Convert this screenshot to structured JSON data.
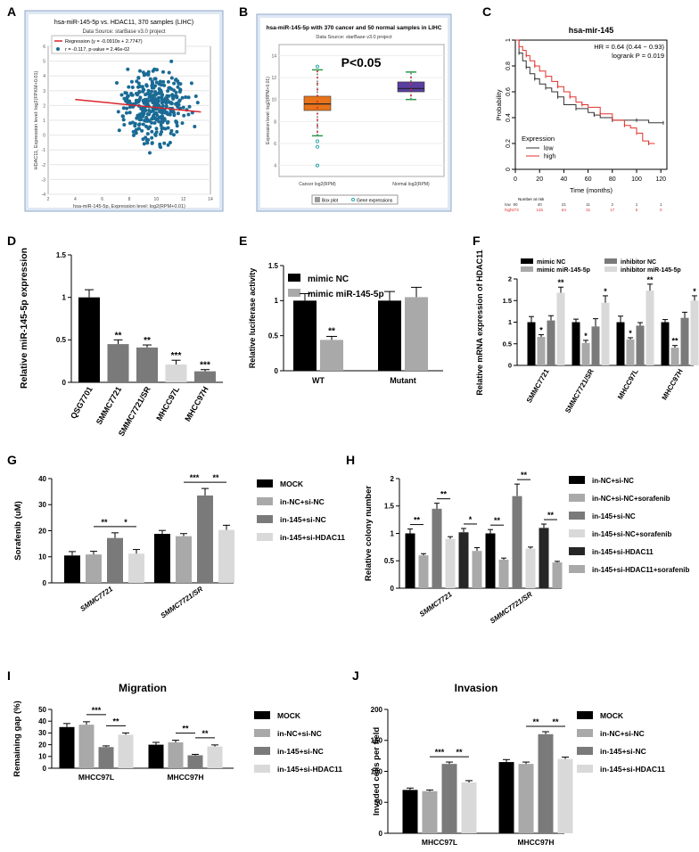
{
  "colors": {
    "black": "#000000",
    "dark": "#262626",
    "mid": "#7a7a7a",
    "light": "#a9a9a9",
    "pale": "#d9d9d9",
    "scatter": "#1a6b95",
    "regression": "#d9262e",
    "box_cancer": "#e8731a",
    "box_normal": "#5a3ea0",
    "km_low": "#333333",
    "km_high": "#e0312c",
    "panel_bg": "#dfe8f4"
  },
  "panels": {
    "A": {
      "label": "A"
    },
    "B": {
      "label": "B"
    },
    "C": {
      "label": "C"
    },
    "D": {
      "label": "D"
    },
    "E": {
      "label": "E"
    },
    "F": {
      "label": "F"
    },
    "G": {
      "label": "G"
    },
    "H": {
      "label": "H"
    },
    "I": {
      "label": "I"
    },
    "J": {
      "label": "J"
    }
  },
  "chart_data": [
    {
      "id": "A",
      "type": "scatter",
      "title": "hsa-miR-145-5p vs. HDAC11, 370 samples (LIHC)",
      "subtitle": "Data Source: starBase v3.0 project",
      "legend": [
        "Regression (y = -0.0910x + 2.7747)",
        "r = -0.117, p-value = 2.46e-02"
      ],
      "xlabel": "hsa-miR-145-5p, Expression level: log2(RPM+0.01)",
      "ylabel": "HDAC11, Expression level: log2(FPKM+0.01)",
      "xticks": [
        2,
        4,
        6,
        8,
        10,
        12,
        14
      ],
      "yticks": [
        -4,
        -3,
        -2,
        -1,
        0,
        1,
        2,
        3,
        4,
        5,
        6
      ],
      "xlim": [
        2,
        14
      ],
      "ylim": [
        -4,
        6
      ],
      "regression": {
        "slope": -0.091,
        "intercept": 2.7747
      },
      "n_points": 370,
      "x_center": 9.9,
      "x_spread": 1.2,
      "y_center": 1.9,
      "y_spread": 1.2
    },
    {
      "id": "B",
      "type": "box",
      "title": "hsa-miR-145-5p with 370 cancer and 50 normal samples in LIHC",
      "subtitle": "Data Source: starBase v3.0 project",
      "annotation": "P<0.05",
      "ylabel": "Expression level: log2(RPM+0.01)",
      "yticks": [
        4,
        6,
        8,
        10,
        12,
        14
      ],
      "ylim": [
        3,
        15
      ],
      "categories": [
        "Cancer log2(RPM)",
        "Normal log2(RPM)"
      ],
      "boxes": [
        {
          "name": "Cancer log2(RPM)",
          "q1": 9.0,
          "median": 9.6,
          "q3": 10.3,
          "whisker_low": 6.7,
          "whisker_high": 12.7,
          "outliers": [
            4.0,
            5.7,
            6.2,
            13.0
          ]
        },
        {
          "name": "Normal log2(RPM)",
          "q1": 10.7,
          "median": 11.0,
          "q3": 11.6,
          "whisker_low": 10.0,
          "whisker_high": 12.5,
          "outliers": []
        }
      ],
      "legend": [
        "Box plot",
        "Gene expressions"
      ]
    },
    {
      "id": "C",
      "type": "line",
      "title": "hsa-mir-145",
      "stats": [
        "HR = 0.64 (0.44 − 0.93)",
        "logrank P = 0.019"
      ],
      "xlabel": "Time (months)",
      "ylabel": "Probability",
      "xticks": [
        0,
        20,
        40,
        60,
        80,
        100,
        120
      ],
      "yticks": [
        0.0,
        0.2,
        0.4,
        0.6,
        0.8,
        1.0
      ],
      "xlim": [
        0,
        125
      ],
      "ylim": [
        0,
        1
      ],
      "legend_title": "Expression",
      "series": [
        {
          "name": "low",
          "x": [
            0,
            3,
            6,
            9,
            12,
            16,
            20,
            25,
            30,
            35,
            40,
            50,
            60,
            65,
            70,
            80,
            90,
            100,
            110,
            122
          ],
          "y": [
            1.0,
            0.9,
            0.84,
            0.79,
            0.74,
            0.7,
            0.66,
            0.63,
            0.6,
            0.56,
            0.5,
            0.47,
            0.44,
            0.42,
            0.4,
            0.38,
            0.38,
            0.38,
            0.36,
            0.36
          ]
        },
        {
          "name": "high",
          "x": [
            0,
            3,
            6,
            9,
            12,
            16,
            20,
            25,
            30,
            35,
            40,
            45,
            50,
            55,
            60,
            70,
            80,
            90,
            95,
            100,
            105,
            110,
            115
          ],
          "y": [
            1.0,
            0.95,
            0.92,
            0.88,
            0.84,
            0.8,
            0.76,
            0.72,
            0.68,
            0.64,
            0.6,
            0.56,
            0.52,
            0.5,
            0.48,
            0.43,
            0.38,
            0.34,
            0.32,
            0.28,
            0.22,
            0.2,
            0.2
          ]
        }
      ],
      "risk_table": {
        "title": "Number at risk",
        "rows": [
          {
            "name": "low",
            "values": [
              90,
              40,
              21,
              11,
              2,
              1,
              1
            ]
          },
          {
            "name": "high",
            "values": [
              273,
              145,
              64,
              31,
              17,
              5,
              0
            ]
          }
        ]
      }
    },
    {
      "id": "D",
      "type": "bar",
      "ylabel": "Relative miR-145-5p expression",
      "yticks": [
        0.0,
        0.5,
        1.0,
        1.5
      ],
      "ylim": [
        0,
        1.5
      ],
      "categories": [
        "QSG7701",
        "SMMC7721",
        "SMMC7721/SR",
        "MHCC97L",
        "MHCC97H"
      ],
      "values": [
        1.0,
        0.45,
        0.41,
        0.21,
        0.13
      ],
      "errors": [
        0.09,
        0.05,
        0.03,
        0.05,
        0.02
      ],
      "sig": [
        "",
        "**",
        "**",
        "***",
        "***"
      ]
    },
    {
      "id": "E",
      "type": "bar",
      "ylabel": "Relative luciferase activity",
      "yticks": [
        0.0,
        0.5,
        1.0,
        1.5
      ],
      "ylim": [
        0,
        1.5
      ],
      "categories": [
        "WT",
        "Mutant"
      ],
      "series": [
        {
          "name": "mimic NC",
          "values": [
            1.0,
            1.0
          ],
          "errors": [
            0.1,
            0.13
          ]
        },
        {
          "name": "mimic miR-145-5p",
          "values": [
            0.44,
            1.05
          ],
          "errors": [
            0.05,
            0.14
          ]
        }
      ],
      "sig": [
        {
          "category": "WT",
          "series": 1,
          "text": "**"
        }
      ]
    },
    {
      "id": "F",
      "type": "bar",
      "ylabel": "Relative mRNA expression of HDAC11",
      "yticks": [
        0.0,
        0.5,
        1.0,
        1.5,
        2.0
      ],
      "ylim": [
        0,
        2.0
      ],
      "categories": [
        "SMMC7721",
        "SMMC7721/SR",
        "MHCC97L",
        "MHCC97H"
      ],
      "series": [
        {
          "name": "mimic NC",
          "values": [
            1.0,
            1.0,
            1.0,
            1.0
          ],
          "errors": [
            0.13,
            0.07,
            0.14,
            0.06
          ]
        },
        {
          "name": "mimic miR-145-5p",
          "values": [
            0.66,
            0.52,
            0.6,
            0.41
          ],
          "errors": [
            0.05,
            0.06,
            0.04,
            0.05
          ]
        },
        {
          "name": "inhibitor NC",
          "values": [
            1.04,
            0.9,
            0.92,
            1.1
          ],
          "errors": [
            0.11,
            0.18,
            0.07,
            0.13
          ]
        },
        {
          "name": "inhibitor miR-145-5p",
          "values": [
            1.68,
            1.45,
            1.73,
            1.5
          ],
          "errors": [
            0.13,
            0.16,
            0.15,
            0.11
          ]
        }
      ],
      "sig": [
        {
          "category": 0,
          "series": 1,
          "text": "*"
        },
        {
          "category": 0,
          "series": 3,
          "text": "**"
        },
        {
          "category": 1,
          "series": 1,
          "text": "*"
        },
        {
          "category": 1,
          "series": 3,
          "text": "*"
        },
        {
          "category": 2,
          "series": 1,
          "text": "*"
        },
        {
          "category": 2,
          "series": 3,
          "text": "**"
        },
        {
          "category": 3,
          "series": 1,
          "text": "**"
        },
        {
          "category": 3,
          "series": 3,
          "text": "*"
        }
      ]
    },
    {
      "id": "G",
      "type": "bar",
      "ylabel": "Sorafenib (uM)",
      "yticks": [
        0,
        10,
        20,
        30,
        40
      ],
      "ylim": [
        0,
        40
      ],
      "categories": [
        "SMMC7721",
        "SMMC7721/SR"
      ],
      "series": [
        {
          "name": "MOCK",
          "values": [
            10.5,
            18.8
          ],
          "errors": [
            1.5,
            1.3
          ]
        },
        {
          "name": "in-NC+si-NC",
          "values": [
            10.9,
            17.9
          ],
          "errors": [
            1.2,
            1.0
          ]
        },
        {
          "name": "in-145+si-NC",
          "values": [
            17.2,
            33.5
          ],
          "errors": [
            2.0,
            2.7
          ]
        },
        {
          "name": "in-145+si-HDAC11",
          "values": [
            11.2,
            20.3
          ],
          "errors": [
            1.6,
            1.8
          ]
        }
      ],
      "brackets": [
        {
          "category": 0,
          "from": 1,
          "to": 2,
          "text": "**"
        },
        {
          "category": 0,
          "from": 2,
          "to": 3,
          "text": "*"
        },
        {
          "category": 1,
          "from": 1,
          "to": 2,
          "text": "***"
        },
        {
          "category": 1,
          "from": 2,
          "to": 3,
          "text": "**"
        }
      ]
    },
    {
      "id": "H",
      "type": "bar",
      "ylabel": "Relative colony number",
      "yticks": [
        0.0,
        0.5,
        1.0,
        1.5,
        2.0
      ],
      "ylim": [
        0,
        2.0
      ],
      "categories": [
        "SMMC7721",
        "SMMC7721/SR"
      ],
      "series": [
        {
          "name": "in-NC+si-NC",
          "values": [
            1.0,
            1.0
          ],
          "errors": [
            0.08,
            0.07
          ]
        },
        {
          "name": "in-NC+si-NC+sorafenib",
          "values": [
            0.6,
            0.52
          ],
          "errors": [
            0.03,
            0.03
          ]
        },
        {
          "name": "in-145+si-NC",
          "values": [
            1.45,
            1.68
          ],
          "errors": [
            0.1,
            0.22
          ]
        },
        {
          "name": "in-145+si-NC+sorafenib",
          "values": [
            0.9,
            0.72
          ],
          "errors": [
            0.04,
            0.03
          ]
        },
        {
          "name": "in-145+si-HDAC11",
          "values": [
            1.02,
            1.1
          ],
          "errors": [
            0.07,
            0.07
          ]
        },
        {
          "name": "in-145+si-HDAC11+sorafenib",
          "values": [
            0.68,
            0.47
          ],
          "errors": [
            0.06,
            0.02
          ]
        }
      ],
      "brackets": [
        {
          "category": 0,
          "from": 0,
          "to": 1,
          "text": "**"
        },
        {
          "category": 0,
          "from": 2,
          "to": 3,
          "text": "**"
        },
        {
          "category": 0,
          "from": 4,
          "to": 5,
          "text": "*"
        },
        {
          "category": 1,
          "from": 0,
          "to": 1,
          "text": "**"
        },
        {
          "category": 1,
          "from": 2,
          "to": 3,
          "text": "**"
        },
        {
          "category": 1,
          "from": 4,
          "to": 5,
          "text": "**"
        }
      ]
    },
    {
      "id": "I",
      "type": "bar",
      "title": "Migration",
      "ylabel": "Remaining gap (%)",
      "yticks": [
        0,
        10,
        20,
        30,
        40,
        50
      ],
      "ylim": [
        0,
        50
      ],
      "categories": [
        "MHCC97L",
        "MHCC97H"
      ],
      "series": [
        {
          "name": "MOCK",
          "values": [
            35,
            20
          ],
          "errors": [
            3.0,
            2.0
          ]
        },
        {
          "name": "in-NC+si-NC",
          "values": [
            37,
            22
          ],
          "errors": [
            2.5,
            1.8
          ]
        },
        {
          "name": "in-145+si-NC",
          "values": [
            18,
            11
          ],
          "errors": [
            1.0,
            0.8
          ]
        },
        {
          "name": "in-145+si-HDAC11",
          "values": [
            28.5,
            18.5
          ],
          "errors": [
            1.5,
            1.3
          ]
        }
      ],
      "brackets": [
        {
          "category": 0,
          "from": 1,
          "to": 2,
          "text": "***"
        },
        {
          "category": 0,
          "from": 2,
          "to": 3,
          "text": "**"
        },
        {
          "category": 1,
          "from": 1,
          "to": 2,
          "text": "**"
        },
        {
          "category": 1,
          "from": 2,
          "to": 3,
          "text": "**"
        }
      ]
    },
    {
      "id": "J",
      "type": "bar",
      "title": "Invasion",
      "ylabel": "Invaded cells per field",
      "yticks": [
        0,
        50,
        100,
        150,
        200
      ],
      "ylim": [
        0,
        200
      ],
      "categories": [
        "MHCC97L",
        "MHCC97H"
      ],
      "series": [
        {
          "name": "MOCK",
          "values": [
            70,
            115
          ],
          "errors": [
            3,
            4
          ]
        },
        {
          "name": "in-NC+si-NC",
          "values": [
            68,
            112
          ],
          "errors": [
            2,
            3
          ]
        },
        {
          "name": "in-145+si-NC",
          "values": [
            112,
            160
          ],
          "errors": [
            3,
            4
          ]
        },
        {
          "name": "in-145+si-HDAC11",
          "values": [
            82,
            120
          ],
          "errors": [
            3,
            3
          ]
        }
      ],
      "brackets": [
        {
          "category": 0,
          "from": 1,
          "to": 2,
          "text": "***"
        },
        {
          "category": 0,
          "from": 2,
          "to": 3,
          "text": "**"
        },
        {
          "category": 1,
          "from": 1,
          "to": 2,
          "text": "**"
        },
        {
          "category": 1,
          "from": 2,
          "to": 3,
          "text": "**"
        }
      ]
    }
  ]
}
